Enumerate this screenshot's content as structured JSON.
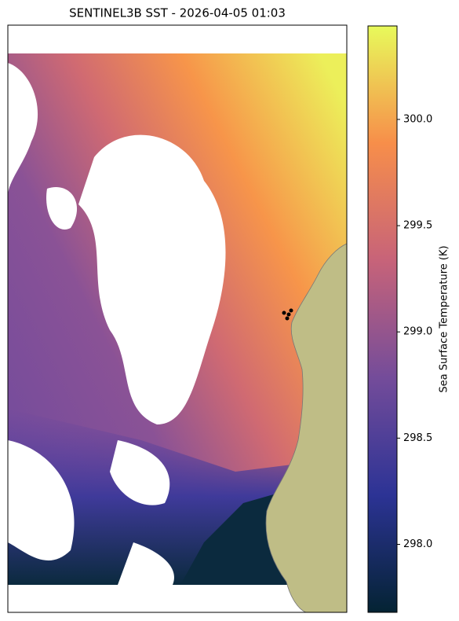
{
  "chart_data": {
    "type": "map",
    "title": "SENTINEL3B SST - 2026-04-05 01:03",
    "colorbar_label": "Sea Surface Temperature (K)",
    "clim": [
      297.68,
      300.44
    ],
    "cticks": [
      {
        "value": 298.0,
        "label": "298.0"
      },
      {
        "value": 298.5,
        "label": "298.5"
      },
      {
        "value": 299.0,
        "label": "299.0"
      },
      {
        "value": 299.5,
        "label": "299.5"
      },
      {
        "value": 300.0,
        "label": "300.0"
      }
    ],
    "colormap": [
      "#042333",
      "#2c3395",
      "#744c9a",
      "#c76379",
      "#f78e4a",
      "#e8fa5b"
    ]
  }
}
